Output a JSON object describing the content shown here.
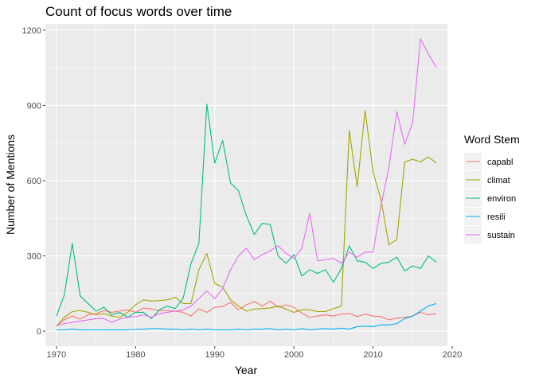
{
  "chart_data": {
    "type": "line",
    "title": "Count of focus words over time",
    "xlabel": "Year",
    "ylabel": "Number of Mentions",
    "xlim": [
      1968.6,
      2019.4
    ],
    "ylim": [
      -60,
      1225
    ],
    "xticks": [
      1970,
      1980,
      1990,
      2000,
      2010,
      2020
    ],
    "yticks": [
      0,
      300,
      600,
      900,
      1200
    ],
    "grid": true,
    "legend": {
      "title": "Word Stem",
      "position": "right"
    },
    "x": [
      1970,
      1971,
      1972,
      1973,
      1974,
      1975,
      1976,
      1977,
      1978,
      1979,
      1980,
      1981,
      1982,
      1983,
      1984,
      1985,
      1986,
      1987,
      1988,
      1989,
      1990,
      1991,
      1992,
      1993,
      1994,
      1995,
      1996,
      1997,
      1998,
      1999,
      2000,
      2001,
      2002,
      2003,
      2004,
      2005,
      2006,
      2007,
      2008,
      2009,
      2010,
      2011,
      2012,
      2013,
      2014,
      2015,
      2016,
      2017,
      2018
    ],
    "series": [
      {
        "name": "capabl",
        "color": "#F8766D",
        "values": [
          22,
          45,
          60,
          48,
          65,
          70,
          82,
          75,
          80,
          85,
          75,
          92,
          88,
          82,
          82,
          80,
          75,
          60,
          90,
          75,
          95,
          98,
          115,
          85,
          105,
          118,
          100,
          120,
          95,
          105,
          95,
          72,
          55,
          60,
          65,
          60,
          68,
          70,
          58,
          68,
          60,
          58,
          45,
          52,
          55,
          60,
          75,
          65,
          70
        ]
      },
      {
        "name": "climat",
        "color": "#A3A500",
        "values": [
          20,
          55,
          78,
          82,
          75,
          65,
          70,
          60,
          55,
          75,
          105,
          125,
          120,
          122,
          125,
          135,
          110,
          110,
          245,
          310,
          190,
          175,
          125,
          100,
          80,
          88,
          90,
          92,
          100,
          88,
          75,
          85,
          85,
          78,
          78,
          90,
          100,
          800,
          575,
          880,
          635,
          525,
          345,
          365,
          675,
          685,
          675,
          695,
          670
        ]
      },
      {
        "name": "environ",
        "color": "#00BF7D",
        "values": [
          60,
          145,
          350,
          140,
          110,
          80,
          95,
          65,
          75,
          55,
          75,
          75,
          50,
          85,
          100,
          90,
          130,
          270,
          350,
          905,
          670,
          760,
          590,
          560,
          460,
          385,
          430,
          425,
          300,
          270,
          305,
          220,
          245,
          230,
          245,
          195,
          250,
          340,
          280,
          275,
          250,
          270,
          275,
          295,
          240,
          260,
          250,
          300,
          275
        ]
      },
      {
        "name": "resili",
        "color": "#00B0F6",
        "values": [
          5,
          5,
          8,
          5,
          5,
          5,
          5,
          5,
          5,
          5,
          7,
          8,
          10,
          10,
          8,
          8,
          5,
          8,
          5,
          8,
          5,
          5,
          5,
          8,
          5,
          8,
          8,
          10,
          5,
          8,
          5,
          10,
          5,
          8,
          10,
          8,
          12,
          8,
          18,
          20,
          18,
          25,
          25,
          30,
          50,
          60,
          80,
          100,
          110
        ]
      },
      {
        "name": "sustain",
        "color": "#E76BF3",
        "values": [
          22,
          30,
          35,
          40,
          45,
          50,
          50,
          35,
          48,
          55,
          58,
          65,
          55,
          70,
          75,
          80,
          85,
          100,
          130,
          160,
          130,
          170,
          245,
          300,
          330,
          285,
          305,
          320,
          340,
          310,
          290,
          330,
          470,
          280,
          285,
          290,
          270,
          315,
          295,
          315,
          315,
          500,
          650,
          875,
          745,
          830,
          1165,
          1105,
          1050
        ]
      }
    ]
  }
}
